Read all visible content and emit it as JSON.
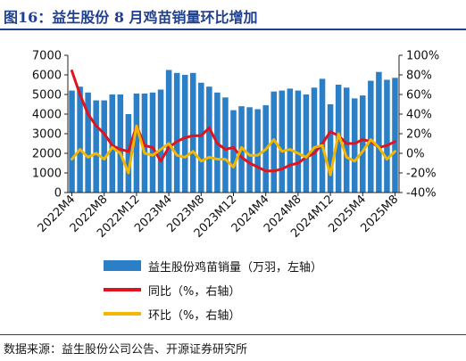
{
  "title": "图16：益生股份 8 月鸡苗销量环比增加",
  "source": "数据来源：益生股份公司公告、开源证券研究所",
  "legend": {
    "bar": "益生股份鸡苗销量（万羽，左轴）",
    "yoy": "同比（%，右轴）",
    "mom": "环比（%，右轴）"
  },
  "colors": {
    "bar": "#2a7fc7",
    "yoy": "#e0141e",
    "mom": "#f2b705",
    "axis": "#222222"
  },
  "chart_data": {
    "type": "bar",
    "x_tick_labels": [
      "2022M4",
      "2022M8",
      "2022M12",
      "2023M4",
      "2023M8",
      "2023M12",
      "2024M4",
      "2024M8",
      "2024M12",
      "2025M4",
      "2025M8"
    ],
    "left_axis": {
      "ylim": [
        0,
        7000
      ],
      "ticks": [
        "0",
        "1000",
        "2000",
        "3000",
        "4000",
        "5000",
        "6000",
        "7000"
      ]
    },
    "right_axis": {
      "ylim": [
        -40,
        100
      ],
      "ticks": [
        "-40%",
        "-20%",
        "0%",
        "20%",
        "40%",
        "60%",
        "80%",
        "100%"
      ]
    },
    "x": [
      "2022M4",
      "2022M5",
      "2022M6",
      "2022M7",
      "2022M8",
      "2022M9",
      "2022M10",
      "2022M11",
      "2022M12",
      "2023M1",
      "2023M2",
      "2023M3",
      "2023M4",
      "2023M5",
      "2023M6",
      "2023M7",
      "2023M8",
      "2023M9",
      "2023M10",
      "2023M11",
      "2023M12",
      "2024M1",
      "2024M2",
      "2024M3",
      "2024M4",
      "2024M5",
      "2024M6",
      "2024M7",
      "2024M8",
      "2024M9",
      "2024M10",
      "2024M11",
      "2024M12",
      "2025M1",
      "2025M2",
      "2025M3",
      "2025M4",
      "2025M5",
      "2025M6",
      "2025M7",
      "2025M8"
    ],
    "series": [
      {
        "name": "益生股份鸡苗销量（万羽，左轴）",
        "axis": "left",
        "kind": "bar",
        "values": [
          5200,
          5400,
          5100,
          4700,
          4700,
          5000,
          5000,
          4000,
          5050,
          5050,
          5100,
          5250,
          6250,
          6100,
          6000,
          6100,
          5600,
          5400,
          5100,
          4850,
          4200,
          4400,
          4350,
          4250,
          4450,
          5150,
          5200,
          5300,
          5200,
          5000,
          5350,
          5800,
          4500,
          5500,
          5350,
          4800,
          4950,
          5700,
          6150,
          5750,
          5850
        ]
      },
      {
        "name": "同比（%，右轴）",
        "axis": "right",
        "kind": "line",
        "values": [
          84,
          60,
          40,
          28,
          20,
          8,
          4,
          2,
          28,
          8,
          6,
          -8,
          6,
          12,
          16,
          18,
          18,
          26,
          10,
          4,
          6,
          -4,
          -10,
          -14,
          -18,
          -18,
          -16,
          -12,
          -10,
          -4,
          0,
          10,
          22,
          18,
          10,
          10,
          14,
          12,
          6,
          8,
          12
        ]
      },
      {
        "name": "环比（%，右轴）",
        "axis": "right",
        "kind": "line",
        "values": [
          -6,
          4,
          -4,
          0,
          -6,
          6,
          0,
          -20,
          28,
          0,
          -2,
          4,
          10,
          -2,
          -4,
          2,
          -8,
          -4,
          -6,
          -6,
          -14,
          6,
          -2,
          -2,
          4,
          14,
          2,
          4,
          0,
          -4,
          6,
          8,
          -22,
          20,
          -4,
          -8,
          2,
          14,
          6,
          -6,
          2
        ]
      }
    ]
  }
}
